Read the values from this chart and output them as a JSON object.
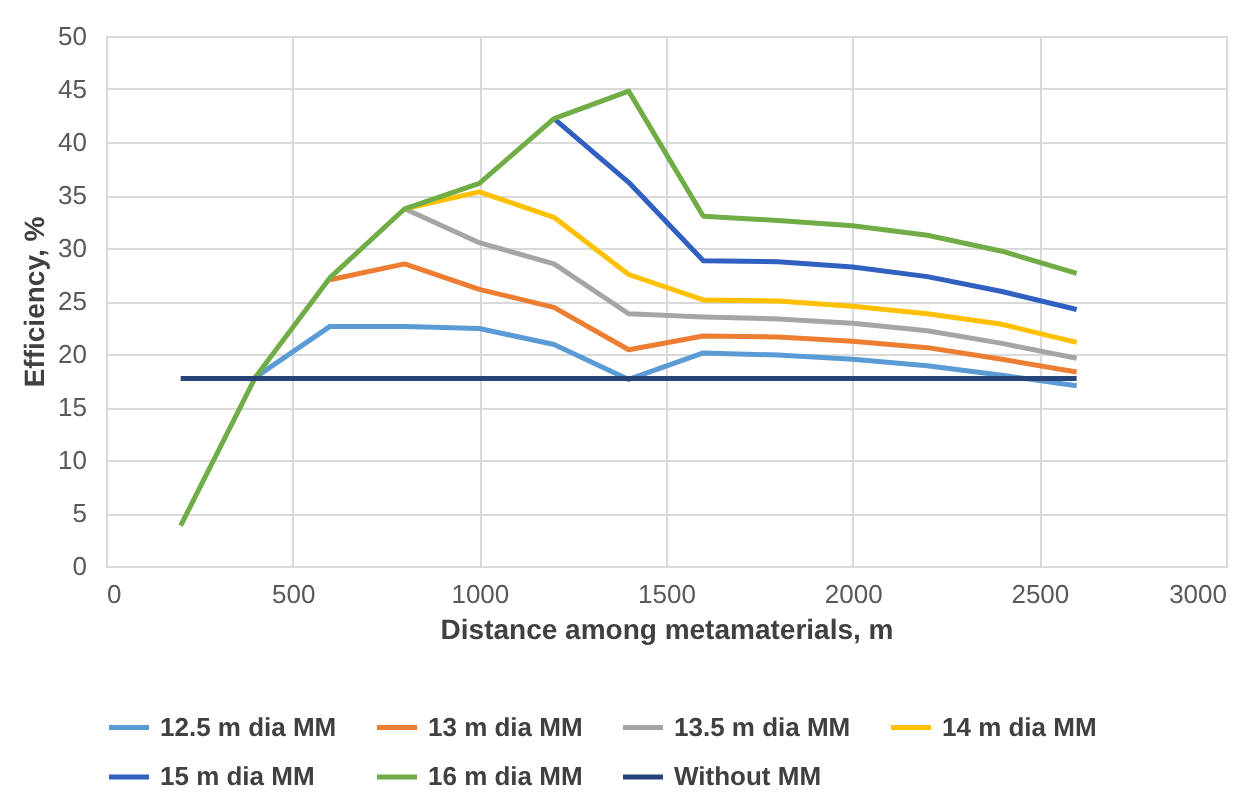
{
  "chart_data": {
    "type": "line",
    "xlabel": "Distance among metamaterials, m",
    "ylabel": "Efficiency, %",
    "x": [
      200,
      400,
      600,
      800,
      1000,
      1200,
      1400,
      1600,
      1800,
      2000,
      2200,
      2400,
      2600
    ],
    "series": [
      {
        "name": "12.5 m dia MM",
        "color": "#5b9bd5",
        "values": [
          null,
          17.8,
          22.6,
          22.6,
          22.4,
          20.9,
          17.6,
          20.1,
          19.9,
          19.5,
          18.9,
          18.0,
          17.0
        ]
      },
      {
        "name": "13 m dia MM",
        "color": "#ed7d31",
        "values": [
          null,
          null,
          27.0,
          28.5,
          26.1,
          24.4,
          20.4,
          21.7,
          21.6,
          21.2,
          20.6,
          19.5,
          18.3
        ]
      },
      {
        "name": "13.5 m dia MM",
        "color": "#a5a5a5",
        "values": [
          null,
          null,
          null,
          33.7,
          30.5,
          28.5,
          23.8,
          23.5,
          23.3,
          22.9,
          22.2,
          21.0,
          19.6
        ]
      },
      {
        "name": "14 m dia MM",
        "color": "#ffc000",
        "values": [
          null,
          null,
          null,
          33.7,
          35.3,
          32.9,
          27.5,
          25.1,
          25.0,
          24.5,
          23.8,
          22.8,
          21.1
        ]
      },
      {
        "name": "15 m dia MM",
        "color": "#3060c0",
        "values": [
          null,
          null,
          null,
          null,
          null,
          42.2,
          36.2,
          28.8,
          28.7,
          28.2,
          27.3,
          25.9,
          24.2
        ]
      },
      {
        "name": "16 m dia MM",
        "color": "#70ad47",
        "values": [
          3.8,
          17.8,
          27.2,
          33.7,
          36.1,
          42.2,
          44.8,
          33.0,
          32.6,
          32.1,
          31.2,
          29.7,
          27.6
        ]
      },
      {
        "name": "Without MM",
        "color": "#264478",
        "values": [
          17.7,
          17.7,
          17.7,
          17.7,
          17.7,
          17.7,
          17.7,
          17.7,
          17.7,
          17.7,
          17.7,
          17.7,
          17.7
        ]
      }
    ],
    "xlim": [
      0,
      3000
    ],
    "xticks": [
      0,
      500,
      1000,
      1500,
      2000,
      2500,
      3000
    ],
    "ylim": [
      0,
      50
    ],
    "yticks": [
      0,
      5,
      10,
      15,
      20,
      25,
      30,
      35,
      40,
      45,
      50
    ],
    "grid": true,
    "legend": "bottom"
  }
}
